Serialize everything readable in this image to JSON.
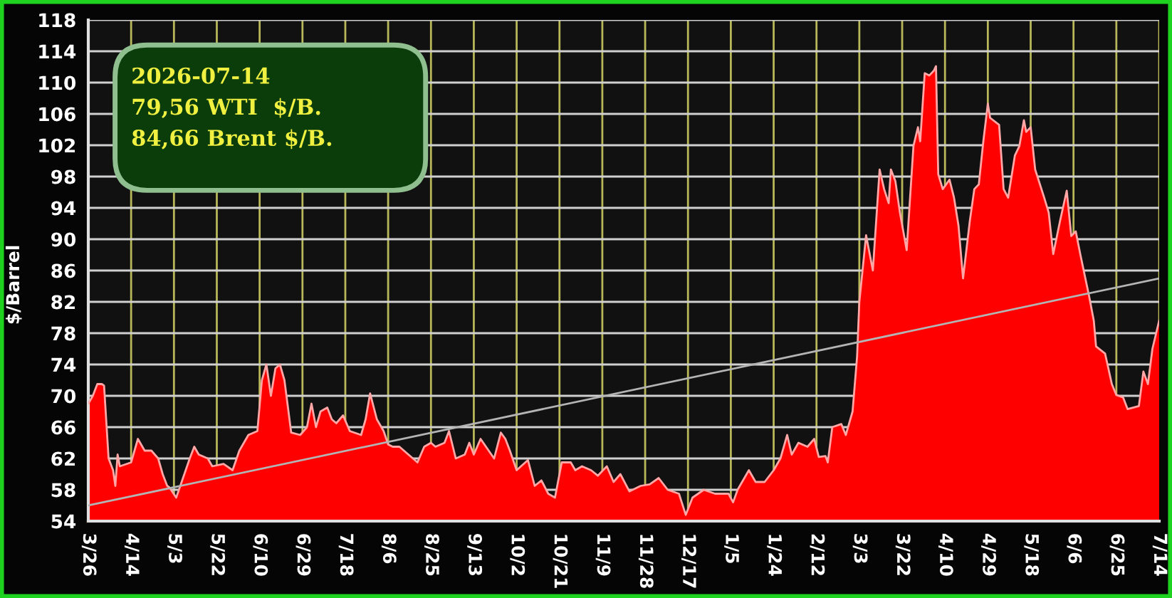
{
  "chart_data": {
    "type": "area",
    "ylabel": "$/Barrel",
    "annotations": [
      "2026-07-14",
      "79,56 WTI  $/B.",
      "84,66 Brent $/B."
    ],
    "grid": true,
    "xlim": [
      "2025-03-26",
      "2026-07-14"
    ],
    "xticks": [
      {
        "value": "2025-03-26",
        "label": "3/26"
      },
      {
        "value": "2025-04-14",
        "label": "4/14"
      },
      {
        "value": "2025-05-03",
        "label": "5/3"
      },
      {
        "value": "2025-05-22",
        "label": "5/22"
      },
      {
        "value": "2025-06-10",
        "label": "6/10"
      },
      {
        "value": "2025-06-29",
        "label": "6/29"
      },
      {
        "value": "2025-07-18",
        "label": "7/18"
      },
      {
        "value": "2025-08-06",
        "label": "8/6"
      },
      {
        "value": "2025-08-25",
        "label": "8/25"
      },
      {
        "value": "2025-09-13",
        "label": "9/13"
      },
      {
        "value": "2025-10-02",
        "label": "10/2"
      },
      {
        "value": "2025-10-21",
        "label": "10/21"
      },
      {
        "value": "2025-11-09",
        "label": "11/9"
      },
      {
        "value": "2025-11-28",
        "label": "11/28"
      },
      {
        "value": "2025-12-17",
        "label": "12/17"
      },
      {
        "value": "2026-01-05",
        "label": "1/5"
      },
      {
        "value": "2026-01-24",
        "label": "1/24"
      },
      {
        "value": "2026-02-12",
        "label": "2/12"
      },
      {
        "value": "2026-03-03",
        "label": "3/3"
      },
      {
        "value": "2026-03-22",
        "label": "3/22"
      },
      {
        "value": "2026-04-10",
        "label": "4/10"
      },
      {
        "value": "2026-04-29",
        "label": "4/29"
      },
      {
        "value": "2026-05-18",
        "label": "5/18"
      },
      {
        "value": "2026-06-06",
        "label": "6/6"
      },
      {
        "value": "2026-06-25",
        "label": "6/25"
      },
      {
        "value": "2026-07-14",
        "label": "7/14"
      }
    ],
    "ylim": [
      54,
      118
    ],
    "yticks": [
      54,
      58,
      62,
      66,
      70,
      74,
      78,
      82,
      86,
      90,
      94,
      98,
      102,
      106,
      110,
      114,
      118
    ],
    "series": [
      {
        "color": "#ff0000",
        "x": [
          "2025-03-26",
          "2025-03-28",
          "2025-03-30",
          "2025-04-01",
          "2025-04-02",
          "2025-04-04",
          "2025-04-06",
          "2025-04-07",
          "2025-04-08",
          "2025-04-09",
          "2025-04-14",
          "2025-04-17",
          "2025-04-20",
          "2025-04-23",
          "2025-04-26",
          "2025-04-28",
          "2025-04-30",
          "2025-05-01",
          "2025-05-04",
          "2025-05-07",
          "2025-05-10",
          "2025-05-12",
          "2025-05-14",
          "2025-05-18",
          "2025-05-20",
          "2025-05-25",
          "2025-05-29",
          "2025-06-01",
          "2025-06-05",
          "2025-06-09",
          "2025-06-11",
          "2025-06-13",
          "2025-06-15",
          "2025-06-17",
          "2025-06-19",
          "2025-06-21",
          "2025-06-24",
          "2025-06-28",
          "2025-07-01",
          "2025-07-03",
          "2025-07-05",
          "2025-07-07",
          "2025-07-10",
          "2025-07-12",
          "2025-07-14",
          "2025-07-17",
          "2025-07-20",
          "2025-07-25",
          "2025-07-27",
          "2025-07-29",
          "2025-08-01",
          "2025-08-04",
          "2025-08-06",
          "2025-08-08",
          "2025-08-11",
          "2025-08-15",
          "2025-08-19",
          "2025-08-22",
          "2025-08-25",
          "2025-08-27",
          "2025-08-31",
          "2025-09-02",
          "2025-09-05",
          "2025-09-09",
          "2025-09-11",
          "2025-09-13",
          "2025-09-16",
          "2025-09-22",
          "2025-09-25",
          "2025-09-27",
          "2025-09-29",
          "2025-10-02",
          "2025-10-07",
          "2025-10-10",
          "2025-10-13",
          "2025-10-16",
          "2025-10-19",
          "2025-10-22",
          "2025-10-26",
          "2025-10-28",
          "2025-10-31",
          "2025-11-04",
          "2025-11-07",
          "2025-11-11",
          "2025-11-14",
          "2025-11-17",
          "2025-11-21",
          "2025-11-26",
          "2025-11-30",
          "2025-12-04",
          "2025-12-08",
          "2025-12-13",
          "2025-12-16",
          "2025-12-19",
          "2025-12-24",
          "2025-12-29",
          "2026-01-04",
          "2026-01-06",
          "2026-01-08",
          "2026-01-13",
          "2026-01-16",
          "2026-01-20",
          "2026-01-24",
          "2026-01-27",
          "2026-01-30",
          "2026-02-01",
          "2026-02-04",
          "2026-02-08",
          "2026-02-11",
          "2026-02-13",
          "2026-02-16",
          "2026-02-17",
          "2026-02-19",
          "2026-02-23",
          "2026-02-25",
          "2026-02-28",
          "2026-03-02",
          "2026-03-03",
          "2026-03-06",
          "2026-03-09",
          "2026-03-12",
          "2026-03-14",
          "2026-03-16",
          "2026-03-17",
          "2026-03-19",
          "2026-03-21",
          "2026-03-24",
          "2026-03-27",
          "2026-03-29",
          "2026-03-30",
          "2026-04-01",
          "2026-04-03",
          "2026-04-05",
          "2026-04-06",
          "2026-04-07",
          "2026-04-09",
          "2026-04-12",
          "2026-04-14",
          "2026-04-16",
          "2026-04-18",
          "2026-04-21",
          "2026-04-23",
          "2026-04-25",
          "2026-04-27",
          "2026-04-29",
          "2026-04-30",
          "2026-05-04",
          "2026-05-06",
          "2026-05-08",
          "2026-05-11",
          "2026-05-13",
          "2026-05-15",
          "2026-05-16",
          "2026-05-18",
          "2026-05-20",
          "2026-05-24",
          "2026-05-26",
          "2026-05-28",
          "2026-05-31",
          "2026-06-03",
          "2026-06-05",
          "2026-06-07",
          "2026-06-09",
          "2026-06-13",
          "2026-06-15",
          "2026-06-16",
          "2026-06-20",
          "2026-06-23",
          "2026-06-25",
          "2026-06-28",
          "2026-06-30",
          "2026-07-05",
          "2026-07-07",
          "2026-07-09",
          "2026-07-11",
          "2026-07-14"
        ],
        "values": [
          69,
          70,
          71.5,
          71.5,
          71.3,
          62,
          60.5,
          58.5,
          62.5,
          61,
          61.5,
          64.5,
          63,
          63,
          62,
          60,
          58.5,
          58.3,
          57,
          59.5,
          62,
          63.5,
          62.5,
          62,
          61,
          61.3,
          60.5,
          63,
          65,
          65.5,
          72,
          74,
          70,
          73.5,
          74,
          72,
          65.3,
          65,
          66,
          69,
          66,
          68,
          68.5,
          67,
          66.5,
          67.5,
          65.5,
          65,
          67,
          70.3,
          67,
          65.5,
          63.8,
          63.5,
          63.5,
          62.5,
          61.5,
          63.5,
          64,
          63.5,
          64,
          65.5,
          62,
          62.5,
          64,
          62.5,
          64.5,
          62,
          65.3,
          64.5,
          63,
          60.5,
          61.8,
          58.5,
          59.2,
          57.5,
          57,
          61.5,
          61.5,
          60.5,
          61,
          60.5,
          59.8,
          61,
          59,
          60,
          57.8,
          58.5,
          58.7,
          59.5,
          58,
          57.5,
          54.8,
          57,
          58,
          57.5,
          57.5,
          56.4,
          58,
          60.5,
          59,
          59,
          60.5,
          62,
          65,
          62.5,
          64,
          63.5,
          64.5,
          62.2,
          62.3,
          61.5,
          66,
          66.4,
          65,
          68,
          75,
          82,
          90.5,
          86,
          98.9,
          96.4,
          94.6,
          98.9,
          97.4,
          93.4,
          88.6,
          101.9,
          104.3,
          102.5,
          111.2,
          110.9,
          111.5,
          112.1,
          98.3,
          96.4,
          97.6,
          95.3,
          91.7,
          85,
          92.3,
          96.4,
          97,
          102.5,
          107.3,
          105.5,
          104.6,
          96.4,
          95.3,
          100.7,
          101.9,
          105.2,
          103.7,
          104.3,
          98.9,
          95.3,
          93.4,
          88.1,
          92.3,
          96.2,
          90.4,
          91,
          88.1,
          82.6,
          79.6,
          76.3,
          75.4,
          71.5,
          70.1,
          69.8,
          68.3,
          68.7,
          73.1,
          71.5,
          76,
          79.6
        ]
      },
      {
        "type": "line",
        "color": "#b4b4b4",
        "x": [
          "2025-03-26",
          "2026-07-14"
        ],
        "values": [
          56,
          85
        ]
      }
    ]
  }
}
